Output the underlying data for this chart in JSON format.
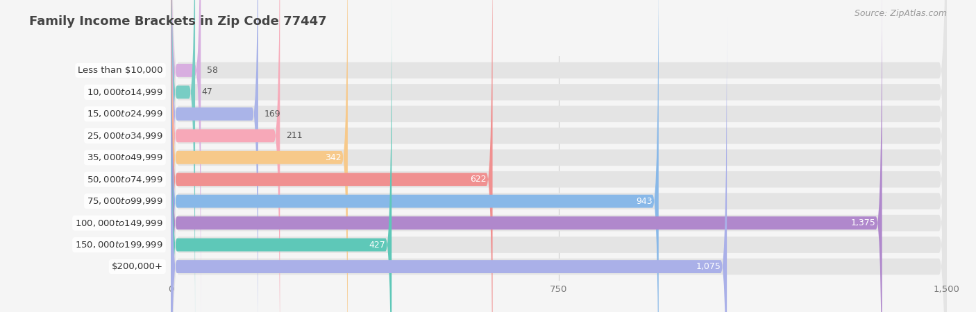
{
  "title": "Family Income Brackets in Zip Code 77447",
  "source": "Source: ZipAtlas.com",
  "categories": [
    "Less than $10,000",
    "$10,000 to $14,999",
    "$15,000 to $24,999",
    "$25,000 to $34,999",
    "$35,000 to $49,999",
    "$50,000 to $74,999",
    "$75,000 to $99,999",
    "$100,000 to $149,999",
    "$150,000 to $199,999",
    "$200,000+"
  ],
  "values": [
    58,
    47,
    169,
    211,
    342,
    622,
    943,
    1375,
    427,
    1075
  ],
  "bar_colors": [
    "#d8aee0",
    "#78cdc4",
    "#aab4e8",
    "#f7a8b8",
    "#f7c98a",
    "#f09090",
    "#88b8e8",
    "#b088cc",
    "#5ec8b8",
    "#aab0e8"
  ],
  "background_color": "#f5f5f5",
  "bar_bg_color": "#e4e4e4",
  "xlim": [
    0,
    1500
  ],
  "xticks": [
    0,
    750,
    1500
  ],
  "title_fontsize": 13,
  "label_fontsize": 9.5,
  "value_fontsize": 9,
  "source_fontsize": 9,
  "value_threshold_inside": 300
}
